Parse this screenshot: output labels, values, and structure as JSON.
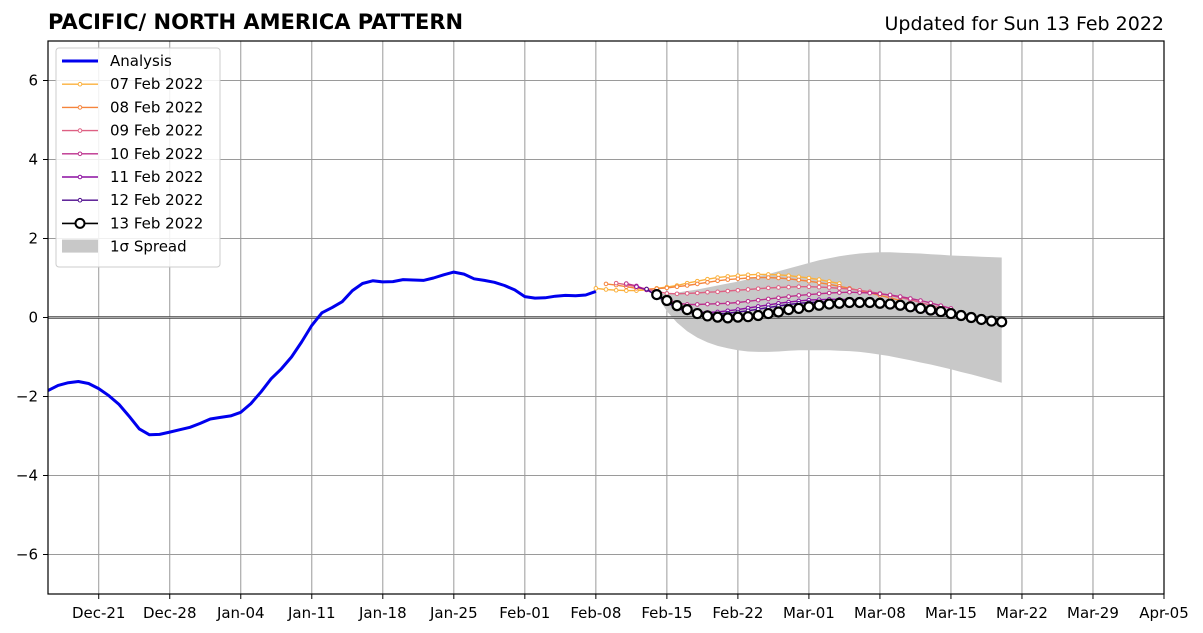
{
  "chart_data": {
    "type": "line",
    "title": "PACIFIC/ NORTH AMERICA PATTERN",
    "subtitle": "Updated for Sun 13 Feb 2022",
    "xlabel": "",
    "ylabel": "",
    "x_range": [
      "2021-12-16",
      "2022-04-05"
    ],
    "ylim": [
      -7,
      7
    ],
    "x_ticks": [
      {
        "date": "2021-12-21",
        "label": "Dec-21"
      },
      {
        "date": "2021-12-28",
        "label": "Dec-28"
      },
      {
        "date": "2022-01-04",
        "label": "Jan-04"
      },
      {
        "date": "2022-01-11",
        "label": "Jan-11"
      },
      {
        "date": "2022-01-18",
        "label": "Jan-18"
      },
      {
        "date": "2022-01-25",
        "label": "Jan-25"
      },
      {
        "date": "2022-02-01",
        "label": "Feb-01"
      },
      {
        "date": "2022-02-08",
        "label": "Feb-08"
      },
      {
        "date": "2022-02-15",
        "label": "Feb-15"
      },
      {
        "date": "2022-02-22",
        "label": "Feb-22"
      },
      {
        "date": "2022-03-01",
        "label": "Mar-01"
      },
      {
        "date": "2022-03-08",
        "label": "Mar-08"
      },
      {
        "date": "2022-03-15",
        "label": "Mar-15"
      },
      {
        "date": "2022-03-22",
        "label": "Mar-22"
      },
      {
        "date": "2022-03-29",
        "label": "Mar-29"
      },
      {
        "date": "2022-04-05",
        "label": "Apr-05"
      }
    ],
    "y_ticks": [
      {
        "value": 6,
        "label": "6"
      },
      {
        "value": 4,
        "label": "4"
      },
      {
        "value": 2,
        "label": "2"
      },
      {
        "value": 0,
        "label": "0"
      },
      {
        "value": -2,
        "label": "−2"
      },
      {
        "value": -4,
        "label": "−4"
      },
      {
        "value": -6,
        "label": "−6"
      }
    ],
    "grid": true,
    "legend_position": "top-left",
    "analysis": {
      "name": "Analysis",
      "color": "#0000ee",
      "x": [
        "2021-12-16",
        "2021-12-17",
        "2021-12-18",
        "2021-12-19",
        "2021-12-20",
        "2021-12-21",
        "2021-12-22",
        "2021-12-23",
        "2021-12-24",
        "2021-12-25",
        "2021-12-26",
        "2021-12-27",
        "2021-12-28",
        "2021-12-29",
        "2021-12-30",
        "2021-12-31",
        "2022-01-01",
        "2022-01-02",
        "2022-01-03",
        "2022-01-04",
        "2022-01-05",
        "2022-01-06",
        "2022-01-07",
        "2022-01-08",
        "2022-01-09",
        "2022-01-10",
        "2022-01-11",
        "2022-01-12",
        "2022-01-13",
        "2022-01-14",
        "2022-01-15",
        "2022-01-16",
        "2022-01-17",
        "2022-01-18",
        "2022-01-19",
        "2022-01-20",
        "2022-01-21",
        "2022-01-22",
        "2022-01-23",
        "2022-01-24",
        "2022-01-25",
        "2022-01-26",
        "2022-01-27",
        "2022-01-28",
        "2022-01-29",
        "2022-01-30",
        "2022-01-31",
        "2022-02-01",
        "2022-02-02",
        "2022-02-03",
        "2022-02-04",
        "2022-02-05",
        "2022-02-06",
        "2022-02-07",
        "2022-02-08"
      ],
      "y": [
        -1.85,
        -1.72,
        -1.65,
        -1.62,
        -1.67,
        -1.8,
        -1.98,
        -2.2,
        -2.5,
        -2.82,
        -2.97,
        -2.96,
        -2.9,
        -2.84,
        -2.78,
        -2.68,
        -2.57,
        -2.53,
        -2.49,
        -2.4,
        -2.18,
        -1.88,
        -1.55,
        -1.3,
        -1.0,
        -0.62,
        -0.2,
        0.12,
        0.25,
        0.4,
        0.68,
        0.86,
        0.93,
        0.9,
        0.91,
        0.96,
        0.95,
        0.94,
        1.0,
        1.08,
        1.15,
        1.1,
        0.98,
        0.94,
        0.89,
        0.81,
        0.7,
        0.53,
        0.49,
        0.5,
        0.54,
        0.56,
        0.55,
        0.57,
        0.66
      ]
    },
    "forecasts": [
      {
        "name": "07 Feb 2022",
        "color": "#fbb13c",
        "start": "2022-02-08",
        "y": [
          0.74,
          0.71,
          0.69,
          0.68,
          0.68,
          0.7,
          0.74,
          0.77,
          0.81,
          0.87,
          0.92,
          0.97,
          1.01,
          1.04,
          1.06,
          1.08,
          1.09,
          1.09,
          1.08,
          1.06,
          1.03,
          1.0,
          0.96,
          0.91,
          0.86
        ]
      },
      {
        "name": "08 Feb 2022",
        "color": "#f5843c",
        "start": "2022-02-09",
        "y": [
          0.85,
          0.82,
          0.78,
          0.74,
          0.72,
          0.73,
          0.75,
          0.78,
          0.81,
          0.85,
          0.89,
          0.93,
          0.96,
          0.98,
          1.0,
          1.01,
          1.01,
          1.0,
          0.98,
          0.95,
          0.92,
          0.88,
          0.84,
          0.79,
          0.74,
          0.68,
          0.62,
          0.56,
          0.5,
          0.43
        ]
      },
      {
        "name": "09 Feb 2022",
        "color": "#de6083",
        "start": "2022-02-10",
        "y": [
          0.87,
          0.83,
          0.78,
          0.72,
          0.66,
          0.61,
          0.6,
          0.61,
          0.62,
          0.64,
          0.65,
          0.67,
          0.69,
          0.71,
          0.73,
          0.75,
          0.76,
          0.77,
          0.78,
          0.78,
          0.77,
          0.76,
          0.74,
          0.72,
          0.69,
          0.65,
          0.61,
          0.56,
          0.51,
          0.45,
          0.38,
          0.31,
          0.24
        ]
      },
      {
        "name": "10 Feb 2022",
        "color": "#bc2f8c",
        "start": "2022-02-11",
        "y": [
          0.86,
          0.8,
          0.7,
          0.58,
          0.46,
          0.37,
          0.33,
          0.33,
          0.34,
          0.35,
          0.36,
          0.38,
          0.41,
          0.44,
          0.47,
          0.5,
          0.53,
          0.56,
          0.58,
          0.6,
          0.62,
          0.63,
          0.64,
          0.63,
          0.62,
          0.6,
          0.57,
          0.53,
          0.48,
          0.43,
          0.37,
          0.3,
          0.23
        ]
      },
      {
        "name": "11 Feb 2022",
        "color": "#8c0fa0",
        "start": "2022-02-12",
        "y": [
          0.78,
          0.7,
          0.56,
          0.41,
          0.28,
          0.19,
          0.14,
          0.13,
          0.14,
          0.17,
          0.2,
          0.24,
          0.28,
          0.32,
          0.36,
          0.39,
          0.42,
          0.44,
          0.45,
          0.46,
          0.46,
          0.45,
          0.44,
          0.42,
          0.4,
          0.37,
          0.34,
          0.3,
          0.26,
          0.22,
          0.18,
          0.14
        ]
      },
      {
        "name": "12 Feb 2022",
        "color": "#4b0a8c",
        "start": "2022-02-13",
        "y": [
          0.72,
          0.55,
          0.38,
          0.24,
          0.14,
          0.09,
          0.08,
          0.09,
          0.11,
          0.14,
          0.17,
          0.21,
          0.25,
          0.29,
          0.33,
          0.36,
          0.38,
          0.39,
          0.4,
          0.4,
          0.39,
          0.37,
          0.35,
          0.32,
          0.29,
          0.25,
          0.21,
          0.17,
          0.13,
          0.09
        ]
      },
      {
        "name": "13 Feb 2022",
        "color": "#000000",
        "start": "2022-02-14",
        "y": [
          0.58,
          0.43,
          0.3,
          0.2,
          0.1,
          0.04,
          0.01,
          -0.01,
          0.01,
          0.02,
          0.05,
          0.1,
          0.14,
          0.2,
          0.23,
          0.27,
          0.31,
          0.34,
          0.36,
          0.38,
          0.38,
          0.38,
          0.36,
          0.34,
          0.31,
          0.27,
          0.23,
          0.19,
          0.15,
          0.1,
          0.05,
          0.0,
          -0.05,
          -0.09,
          -0.11
        ]
      }
    ],
    "spread": {
      "name": "1σ Spread",
      "color": "#c8c8c8",
      "start": "2022-02-14",
      "upper": [
        0.58,
        0.6,
        0.63,
        0.67,
        0.71,
        0.76,
        0.81,
        0.86,
        0.91,
        0.97,
        1.04,
        1.1,
        1.17,
        1.24,
        1.31,
        1.38,
        1.45,
        1.5,
        1.55,
        1.59,
        1.62,
        1.64,
        1.65,
        1.65,
        1.64,
        1.63,
        1.62,
        1.6,
        1.59,
        1.57,
        1.56,
        1.55,
        1.54,
        1.53,
        1.52
      ],
      "lower": [
        0.58,
        0.16,
        -0.13,
        -0.35,
        -0.51,
        -0.63,
        -0.72,
        -0.78,
        -0.83,
        -0.86,
        -0.87,
        -0.87,
        -0.86,
        -0.84,
        -0.83,
        -0.83,
        -0.83,
        -0.83,
        -0.84,
        -0.85,
        -0.87,
        -0.9,
        -0.94,
        -0.98,
        -1.03,
        -1.08,
        -1.14,
        -1.19,
        -1.25,
        -1.31,
        -1.38,
        -1.44,
        -1.51,
        -1.58,
        -1.65
      ]
    }
  }
}
